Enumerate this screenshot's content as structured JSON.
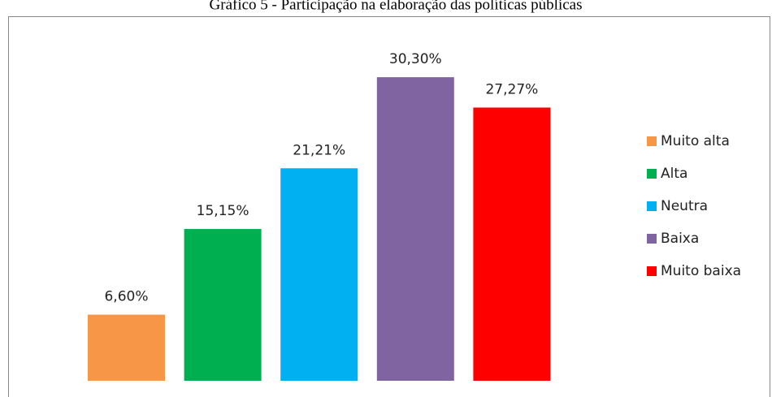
{
  "chart_data": {
    "type": "bar",
    "title": "Gráfico 5 - Participação na elaboração das políticas públicas",
    "categories": [
      "Muito alta",
      "Alta",
      "Neutra",
      "Baixa",
      "Muito baixa"
    ],
    "values": [
      6.6,
      15.15,
      21.21,
      30.3,
      27.27
    ],
    "value_labels": [
      "6,60%",
      "15,15%",
      "21,21%",
      "30,30%",
      "27,27%"
    ],
    "colors": [
      "#f79646",
      "#00b050",
      "#00b0f0",
      "#8064a2",
      "#ff0000"
    ],
    "legend": "right"
  }
}
